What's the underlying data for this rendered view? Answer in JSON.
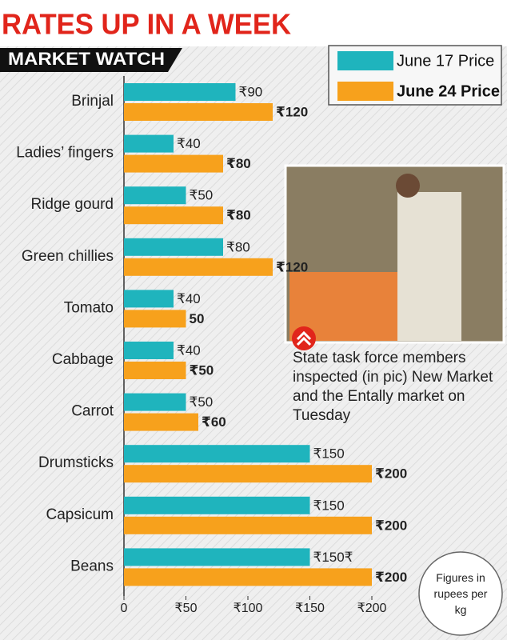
{
  "chart_data": {
    "type": "hbar",
    "title": "RATES UP IN A WEEK",
    "subtitle": "MARKET WATCH",
    "categories": [
      "Brinjal",
      "Ladies’ fingers",
      "Ridge gourd",
      "Green chillies",
      "Tomato",
      "Cabbage",
      "Carrot",
      "Drumsticks",
      "Capsicum",
      "Beans"
    ],
    "series": [
      {
        "name": "June 17 Price",
        "color": "#1fb4bd",
        "values": [
          90,
          40,
          50,
          80,
          40,
          40,
          50,
          150,
          150,
          150
        ],
        "value_labels": [
          "₹90",
          "₹40",
          "₹50",
          "₹80",
          "₹40",
          "₹40",
          "₹50",
          "₹150",
          "₹150",
          "₹150₹"
        ]
      },
      {
        "name": "June 24 Price",
        "color": "#f7a11c",
        "values": [
          120,
          80,
          80,
          120,
          50,
          50,
          60,
          200,
          200,
          200
        ],
        "value_labels": [
          "₹120",
          "₹80",
          "₹80",
          "₹120",
          "50",
          "₹50",
          "₹60",
          "₹200",
          "₹200",
          "₹200"
        ]
      }
    ],
    "xlim": [
      0,
      200
    ],
    "xticks": [
      0,
      {
        "value": 50,
        "label": "₹50"
      },
      {
        "value": 100,
        "label": "₹100"
      },
      {
        "value": 150,
        "label": "₹150"
      },
      {
        "value": 200,
        "label": "₹200"
      }
    ],
    "legend": "top-right",
    "annotations": [
      "State task force members inspected (in pic) New Market and the Entally market on Tuesday",
      "Figures in rupees per kg"
    ]
  }
}
